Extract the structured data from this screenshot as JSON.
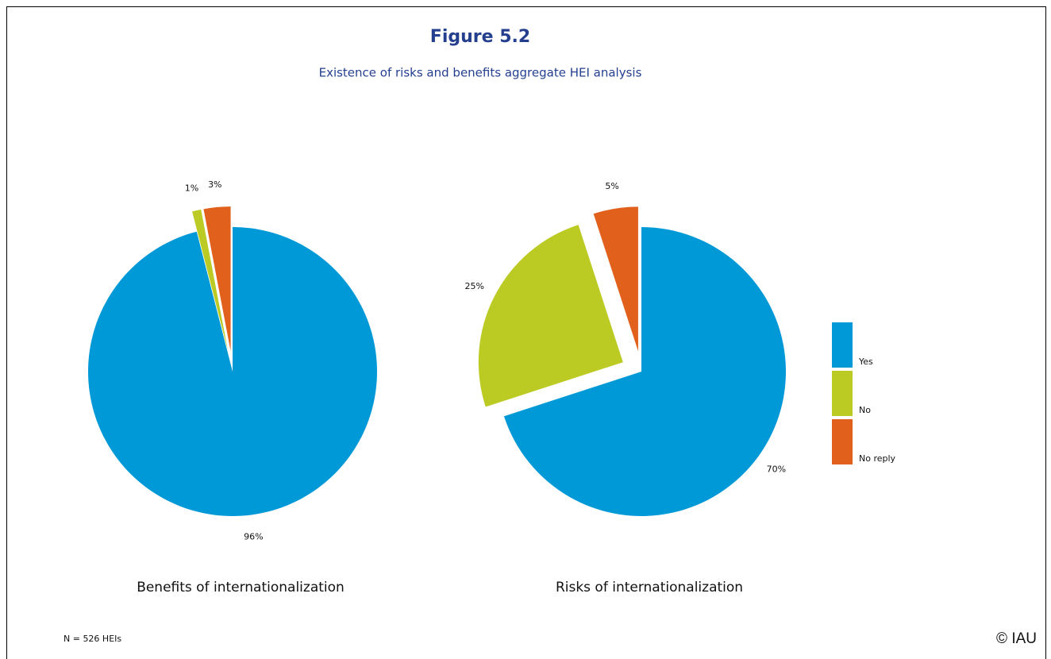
{
  "title": "Figure 5.2",
  "subtitle": "Existence of risks and benefits aggregate HEI analysis",
  "note": "N = 526 HEIs",
  "credit": "© IAU",
  "chart_data": [
    {
      "type": "pie",
      "label": "Benefits of internationalization",
      "categories": [
        "Yes",
        "No",
        "No reply"
      ],
      "values": [
        96,
        1,
        3
      ],
      "value_labels": [
        "96%",
        "1%",
        "3%"
      ],
      "colors": [
        "#0099d8",
        "#bccb23",
        "#e0601c"
      ],
      "legend": true
    },
    {
      "type": "pie",
      "label": "Risks of internationalization",
      "categories": [
        "Yes",
        "No",
        "No reply"
      ],
      "values": [
        70,
        25,
        5
      ],
      "value_labels": [
        "70%",
        "25%",
        "5%"
      ],
      "colors": [
        "#0099d8",
        "#bccb23",
        "#e0601c"
      ],
      "legend": false
    }
  ]
}
